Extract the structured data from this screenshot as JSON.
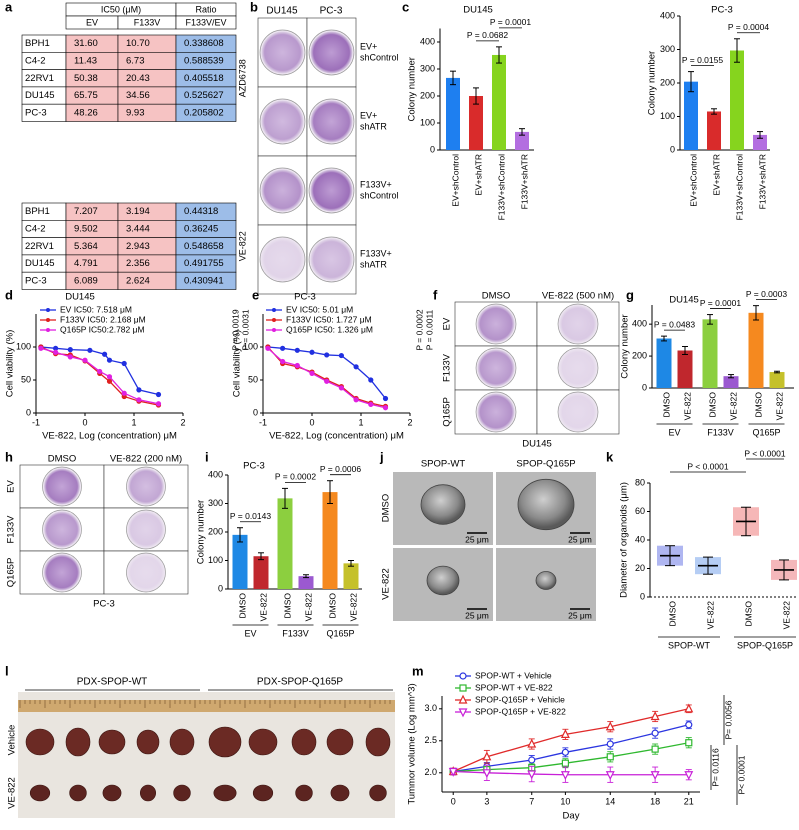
{
  "panel_a": {
    "letter": "a",
    "header": {
      "ic50": "IC50 (μM)",
      "ratio": "Ratio",
      "ev": "EV",
      "f133v": "F133V",
      "ratio_col": "F133V/EV"
    },
    "groups": [
      {
        "label": "AZD6738",
        "rows": [
          [
            "BPH1",
            "31.60",
            "10.70",
            "0.338608"
          ],
          [
            "C4-2",
            "11.43",
            "6.73",
            "0.588539"
          ],
          [
            "22RV1",
            "50.38",
            "20.43",
            "0.405518"
          ],
          [
            "DU145",
            "65.75",
            "34.56",
            "0.525627"
          ],
          [
            "PC-3",
            "48.26",
            "9.93",
            "0.205802"
          ]
        ]
      },
      {
        "label": "VE-822",
        "rows": [
          [
            "BPH1",
            "7.207",
            "3.194",
            "0.44318"
          ],
          [
            "C4-2",
            "9.502",
            "3.444",
            "0.36245"
          ],
          [
            "22RV1",
            "5.364",
            "2.943",
            "0.548658"
          ],
          [
            "DU145",
            "4.791",
            "2.356",
            "0.491755"
          ],
          [
            "PC-3",
            "6.089",
            "2.624",
            "0.430941"
          ]
        ]
      }
    ]
  },
  "panel_b": {
    "letter": "b",
    "columns": [
      "DU145",
      "PC-3"
    ],
    "rows": [
      [
        "EV+",
        "shControl"
      ],
      [
        "EV+",
        "shATR"
      ],
      [
        "F133V+",
        "shControl"
      ],
      [
        "F133V+",
        "shATR"
      ]
    ]
  },
  "panel_c": {
    "letter": "c",
    "charts": [
      {
        "type": "bar",
        "title": "DU145",
        "y_label": "Colony number",
        "categories": [
          "EV+shControl",
          "EV+shATR",
          "F133V+shControl",
          "F133V+shATR"
        ],
        "values": [
          267,
          200,
          352,
          67
        ],
        "errors": [
          25,
          30,
          30,
          12
        ],
        "colors": [
          "#1e7ff0",
          "#d92b2b",
          "#86d41e",
          "#b36ee0"
        ],
        "ylim": [
          0,
          450
        ],
        "yticks": [
          0,
          100,
          200,
          300,
          400
        ],
        "annotations": [
          "P = 0.0682",
          "P = 0.0001"
        ]
      },
      {
        "type": "bar",
        "title": "PC-3",
        "y_label": "Colony number",
        "categories": [
          "EV+shControl",
          "EV+shATR",
          "F133V+shControl",
          "F133V+shATR"
        ],
        "values": [
          204,
          115,
          297,
          45
        ],
        "errors": [
          30,
          8,
          35,
          10
        ],
        "colors": [
          "#1e7ff0",
          "#d92b2b",
          "#86d41e",
          "#b36ee0"
        ],
        "ylim": [
          0,
          400
        ],
        "yticks": [
          0,
          100,
          200,
          300,
          400
        ],
        "annotations": [
          "P = 0.0155",
          "P = 0.0004"
        ]
      }
    ]
  },
  "panel_d": {
    "letter": "d",
    "type": "line",
    "title": "DU145",
    "x_label": "VE-822, Log (concentration) μM",
    "y_label": "Cell viability (%)",
    "xlim": [
      -1,
      2
    ],
    "xticks": [
      -1,
      0,
      1,
      2
    ],
    "ylim": [
      0,
      150
    ],
    "yticks": [
      0,
      50,
      100
    ],
    "series": [
      {
        "name": "EV IC50: 7.518 μM",
        "color": "#2130e0",
        "x": [
          -0.9,
          -0.6,
          -0.3,
          0.1,
          0.4,
          0.5,
          0.8,
          1.1,
          1.5
        ],
        "values": [
          100,
          98,
          96,
          95,
          89,
          80,
          75,
          35,
          28
        ]
      },
      {
        "name": "F133V IC50: 2.168 μM",
        "color": "#e02020",
        "x": [
          -0.9,
          -0.6,
          -0.3,
          0,
          0.3,
          0.5,
          0.8,
          1.1,
          1.5
        ],
        "values": [
          100,
          90,
          88,
          79,
          60,
          48,
          25,
          18,
          12
        ]
      },
      {
        "name": "Q165P IC50:2.782 μM",
        "color": "#e020e0",
        "x": [
          -0.9,
          -0.6,
          -0.3,
          0,
          0.3,
          0.5,
          0.8,
          1.1,
          1.5
        ],
        "values": [
          98,
          92,
          85,
          80,
          63,
          55,
          30,
          20,
          14
        ]
      }
    ],
    "annotations": [
      "P = 0.0019",
      "P = 0.0031"
    ]
  },
  "panel_e": {
    "letter": "e",
    "type": "line",
    "title": "PC-3",
    "x_label": "VE-822, Log (concentration) μM",
    "y_label": "Cell viability (%)",
    "xlim": [
      -1,
      2
    ],
    "xticks": [
      -1,
      0,
      1,
      2
    ],
    "ylim": [
      0,
      150
    ],
    "yticks": [
      0,
      50,
      100
    ],
    "series": [
      {
        "name": "EV IC50: 5.01 μM",
        "color": "#2130e0",
        "x": [
          -0.9,
          -0.6,
          -0.3,
          0,
          0.3,
          0.6,
          0.9,
          1.2,
          1.5
        ],
        "values": [
          100,
          98,
          95,
          92,
          88,
          87,
          70,
          50,
          22
        ]
      },
      {
        "name": "F133V IC50: 1.727 μM",
        "color": "#e02020",
        "x": [
          -0.9,
          -0.6,
          -0.3,
          0,
          0.3,
          0.6,
          0.9,
          1.2,
          1.5
        ],
        "values": [
          100,
          75,
          70,
          62,
          50,
          40,
          22,
          15,
          10
        ]
      },
      {
        "name": "Q165P IC50: 1.326 μM",
        "color": "#e020e0",
        "x": [
          -0.9,
          -0.6,
          -0.3,
          0,
          0.3,
          0.6,
          0.9,
          1.2,
          1.5
        ],
        "values": [
          98,
          78,
          72,
          60,
          48,
          38,
          20,
          13,
          8
        ]
      }
    ],
    "annotations": [
      "P = 0.0002",
      "P = 0.0011"
    ]
  },
  "panel_f": {
    "letter": "f",
    "headers": [
      "DMSO",
      "VE-822 (500 nM)"
    ],
    "rows": [
      "EV",
      "F133V",
      "Q165P"
    ],
    "cell_line": "DU145"
  },
  "panel_g": {
    "letter": "g",
    "type": "bar",
    "title": "DU145",
    "y_label": "Colony number",
    "categories": [
      "DMSO",
      "VE-822",
      "DMSO",
      "VE-822",
      "DMSO",
      "VE-822"
    ],
    "groups": [
      "EV",
      "F133V",
      "Q165P"
    ],
    "values": [
      310,
      235,
      430,
      74,
      471,
      100
    ],
    "errors": [
      15,
      25,
      30,
      10,
      45,
      5
    ],
    "colors": [
      "#1e88e5",
      "#c0272d",
      "#8ccf3f",
      "#9b59d0",
      "#f5891f",
      "#c5c12b"
    ],
    "ylim": [
      0,
      520
    ],
    "yticks": [
      0,
      200,
      400
    ],
    "annotations": [
      "P = 0.0483",
      "P = 0.0001",
      "P = 0.0003"
    ]
  },
  "panel_h": {
    "letter": "h",
    "headers": [
      "DMSO",
      "VE-822 (200 nM)"
    ],
    "rows": [
      "EV",
      "F133V",
      "Q165P"
    ],
    "cell_line": "PC-3"
  },
  "panel_i": {
    "letter": "i",
    "type": "bar",
    "title": "PC-3",
    "y_label": "Colony number",
    "categories": [
      "DMSO",
      "VE-822",
      "DMSO",
      "VE-822",
      "DMSO",
      "VE-822"
    ],
    "groups": [
      "EV",
      "F133V",
      "Q165P"
    ],
    "values": [
      190,
      115,
      318,
      45,
      340,
      90
    ],
    "errors": [
      25,
      12,
      35,
      5,
      40,
      10
    ],
    "colors": [
      "#1e88e5",
      "#c0272d",
      "#8ccf3f",
      "#9b59d0",
      "#f5891f",
      "#c5c12b"
    ],
    "ylim": [
      0,
      400
    ],
    "yticks": [
      0,
      100,
      200,
      300,
      400
    ],
    "annotations": [
      "P = 0.0143",
      "P = 0.0002",
      "P = 0.0006"
    ]
  },
  "panel_j": {
    "letter": "j",
    "columns": [
      "SPOP-WT",
      "SPOP-Q165P"
    ],
    "rows": [
      "DMSO",
      "VE-822"
    ],
    "scale_bars": [
      "25 μm",
      "25 μm",
      "25 μm",
      "25 μm"
    ]
  },
  "panel_k": {
    "letter": "k",
    "type": "scatter",
    "y_label": "Diameter of organoids (μm)",
    "categories": [
      "DMSO",
      "VE-822",
      "DMSO",
      "VE-822"
    ],
    "groups": [
      "SPOP-WT",
      "SPOP-Q165P"
    ],
    "means": [
      29,
      22,
      53,
      19
    ],
    "sd": [
      7,
      6,
      10,
      7
    ],
    "colors": [
      "#1a2fd6",
      "#2b6fe0",
      "#e53030",
      "#e0303a"
    ],
    "ylim": [
      0,
      80
    ],
    "yticks": [
      0,
      20,
      40,
      60,
      80
    ],
    "annotations": [
      "P < 0.0001",
      "P < 0.0001"
    ]
  },
  "panel_l": {
    "letter": "l",
    "groups": [
      "PDX-SPOP-WT",
      "PDX-SPOP-Q165P"
    ],
    "rows": [
      "Vehicle",
      "VE-822"
    ]
  },
  "panel_m": {
    "letter": "m",
    "type": "line",
    "x_label": "Day",
    "y_label": "Tummor volume (Log mm^3)",
    "x": [
      0,
      3,
      7,
      10,
      14,
      18,
      21
    ],
    "xlim": [
      -1,
      22
    ],
    "xticks": [
      0,
      3,
      7,
      10,
      14,
      18,
      21
    ],
    "ylim": [
      1.7,
      3.2
    ],
    "yticks": [
      {
        "value": 2,
        "label": "2.0"
      },
      {
        "value": 2.5,
        "label": "2.5"
      },
      {
        "value": 3,
        "label": "3.0"
      }
    ],
    "series": [
      {
        "name": "SPOP-WT + Vehicle",
        "color": "#2b35e0",
        "marker": "circle",
        "values": [
          2.02,
          2.1,
          2.2,
          2.32,
          2.45,
          2.62,
          2.75
        ],
        "errors": [
          0.05,
          0.06,
          0.07,
          0.07,
          0.08,
          0.08,
          0.06
        ]
      },
      {
        "name": "SPOP-WT + VE-822",
        "color": "#2fb82f",
        "marker": "square",
        "values": [
          2.02,
          2.05,
          2.08,
          2.15,
          2.25,
          2.37,
          2.47
        ],
        "errors": [
          0.05,
          0.05,
          0.06,
          0.07,
          0.08,
          0.08,
          0.08
        ]
      },
      {
        "name": "SPOP-Q165P + Vehicle",
        "color": "#e02a2a",
        "marker": "triangle",
        "values": [
          2.02,
          2.25,
          2.45,
          2.6,
          2.72,
          2.88,
          3.0
        ],
        "errors": [
          0.05,
          0.1,
          0.08,
          0.08,
          0.08,
          0.08,
          0.06
        ]
      },
      {
        "name": "SPOP-Q165P + VE-822",
        "color": "#c820d8",
        "marker": "triangle-down",
        "values": [
          2.02,
          2.0,
          1.98,
          1.97,
          1.97,
          1.97,
          1.97
        ],
        "errors": [
          0.05,
          0.12,
          0.12,
          0.12,
          0.12,
          0.12,
          0.08
        ]
      }
    ],
    "annotations": [
      "P= 0.0116",
      "P= 0.0056",
      "P< 0.0001"
    ]
  }
}
